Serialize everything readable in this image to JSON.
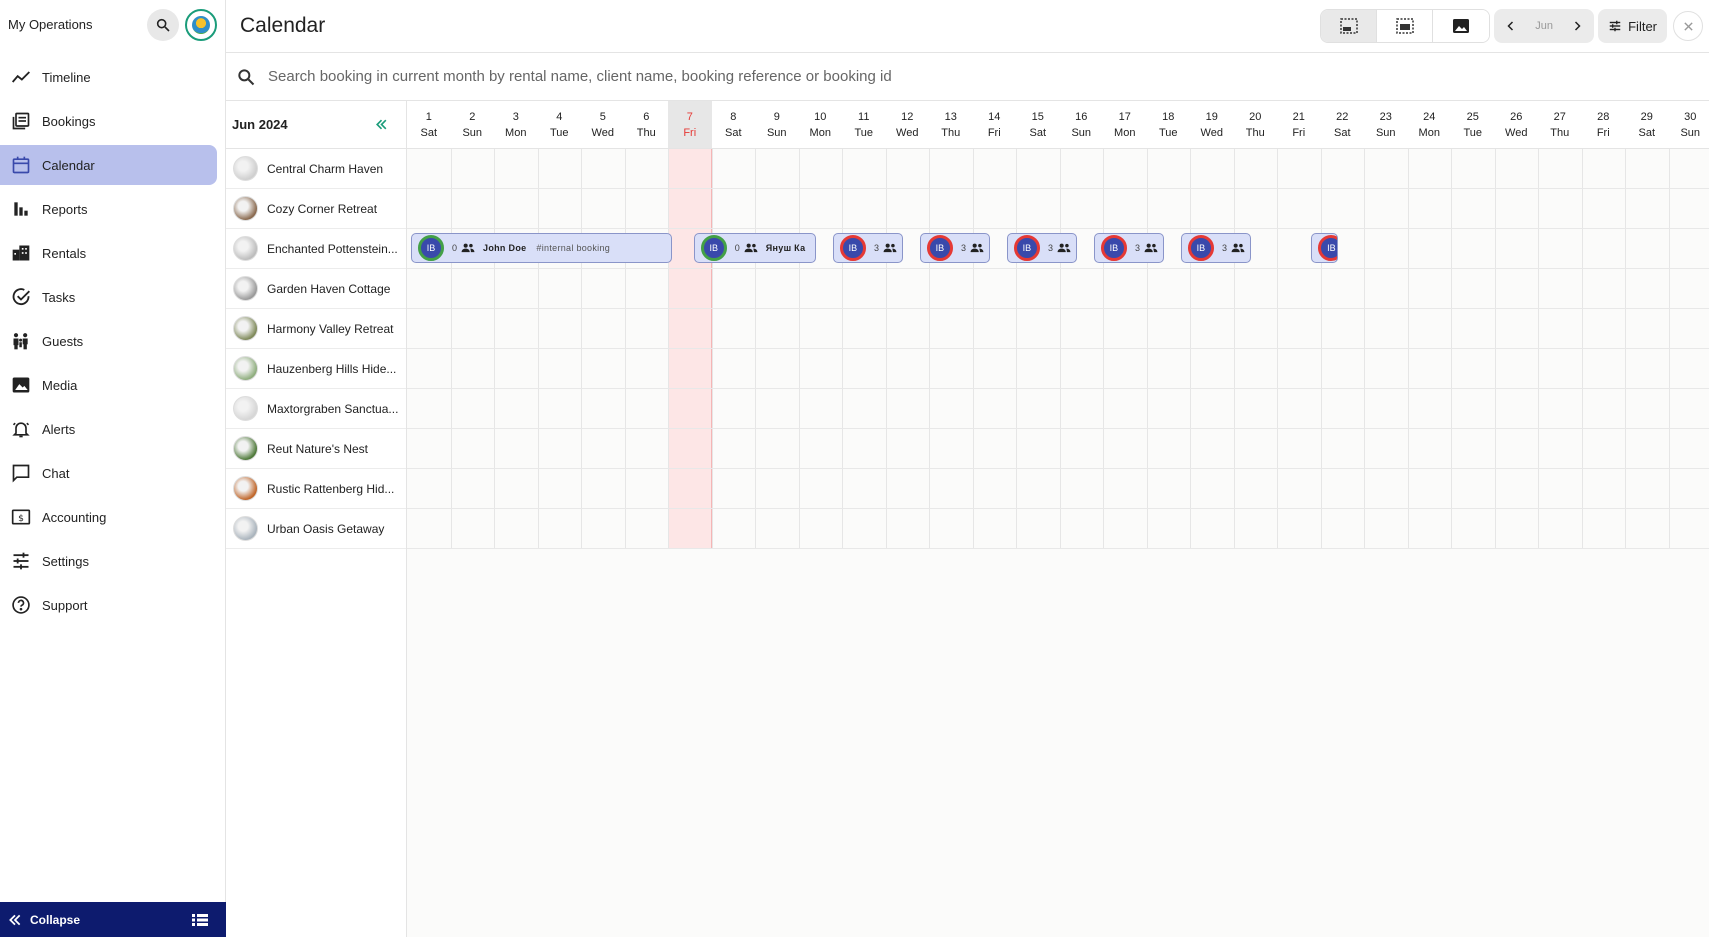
{
  "sidebar": {
    "title": "My Operations",
    "items": [
      {
        "label": "Timeline",
        "icon": "timeline-icon"
      },
      {
        "label": "Bookings",
        "icon": "bookings-icon"
      },
      {
        "label": "Calendar",
        "icon": "calendar-icon",
        "active": true
      },
      {
        "label": "Reports",
        "icon": "bar-chart-icon"
      },
      {
        "label": "Rentals",
        "icon": "building-icon"
      },
      {
        "label": "Tasks",
        "icon": "check-circle-icon"
      },
      {
        "label": "Guests",
        "icon": "people-icon"
      },
      {
        "label": "Media",
        "icon": "image-icon"
      },
      {
        "label": "Alerts",
        "icon": "bell-icon"
      },
      {
        "label": "Chat",
        "icon": "chat-icon"
      },
      {
        "label": "Accounting",
        "icon": "dollar-icon"
      },
      {
        "label": "Settings",
        "icon": "sliders-icon"
      },
      {
        "label": "Support",
        "icon": "help-icon"
      }
    ],
    "collapse_label": "Collapse"
  },
  "header": {
    "title": "Calendar",
    "month_label": "Jun",
    "filter_label": "Filter"
  },
  "search": {
    "placeholder": "Search booking in current month by rental name, client name, booking reference or booking id"
  },
  "calendar": {
    "month_title": "Jun 2024",
    "today": 7,
    "days": [
      {
        "n": "1",
        "d": "Sat"
      },
      {
        "n": "2",
        "d": "Sun"
      },
      {
        "n": "3",
        "d": "Mon"
      },
      {
        "n": "4",
        "d": "Tue"
      },
      {
        "n": "5",
        "d": "Wed"
      },
      {
        "n": "6",
        "d": "Thu"
      },
      {
        "n": "7",
        "d": "Fri"
      },
      {
        "n": "8",
        "d": "Sat"
      },
      {
        "n": "9",
        "d": "Sun"
      },
      {
        "n": "10",
        "d": "Mon"
      },
      {
        "n": "11",
        "d": "Tue"
      },
      {
        "n": "12",
        "d": "Wed"
      },
      {
        "n": "13",
        "d": "Thu"
      },
      {
        "n": "14",
        "d": "Fri"
      },
      {
        "n": "15",
        "d": "Sat"
      },
      {
        "n": "16",
        "d": "Sun"
      },
      {
        "n": "17",
        "d": "Mon"
      },
      {
        "n": "18",
        "d": "Tue"
      },
      {
        "n": "19",
        "d": "Wed"
      },
      {
        "n": "20",
        "d": "Thu"
      },
      {
        "n": "21",
        "d": "Fri"
      },
      {
        "n": "22",
        "d": "Sat"
      },
      {
        "n": "23",
        "d": "Sun"
      },
      {
        "n": "24",
        "d": "Mon"
      },
      {
        "n": "25",
        "d": "Tue"
      },
      {
        "n": "26",
        "d": "Wed"
      },
      {
        "n": "27",
        "d": "Thu"
      },
      {
        "n": "28",
        "d": "Fri"
      },
      {
        "n": "29",
        "d": "Sat"
      },
      {
        "n": "30",
        "d": "Sun"
      }
    ],
    "rentals": [
      {
        "name": "Central Charm Haven",
        "color": "#cfcfcf"
      },
      {
        "name": "Cozy Corner Retreat",
        "color": "#8a6a4f"
      },
      {
        "name": "Enchanted Pottenstein...",
        "color": "#bdbdbd"
      },
      {
        "name": "Garden Haven Cottage",
        "color": "#9a9a9a"
      },
      {
        "name": "Harmony Valley Retreat",
        "color": "#7f8a5a"
      },
      {
        "name": "Hauzenberg Hills Hide...",
        "color": "#8fae7e"
      },
      {
        "name": "Maxtorgraben Sanctua...",
        "color": "#d6d6d6"
      },
      {
        "name": "Reut Nature's Nest",
        "color": "#4f7a3a"
      },
      {
        "name": "Rustic Rattenberg Hid...",
        "color": "#c0662a"
      },
      {
        "name": "Urban Oasis Getaway",
        "color": "#aab4bd"
      }
    ],
    "bookings": [
      {
        "row": 2,
        "start": 1,
        "end": 7,
        "badge": "IB",
        "ring": "green",
        "count": "0",
        "name": "John Doe",
        "note": "#internal booking"
      },
      {
        "row": 2,
        "start": 7.5,
        "end": 10.3,
        "badge": "IB",
        "ring": "green",
        "count": "0",
        "name": "Януш Ка",
        "note": ""
      },
      {
        "row": 2,
        "start": 10.7,
        "end": 12.3,
        "badge": "IB",
        "ring": "red",
        "count": "3",
        "name": "",
        "note": ""
      },
      {
        "row": 2,
        "start": 12.7,
        "end": 14.3,
        "badge": "IB",
        "ring": "red",
        "count": "3",
        "name": "",
        "note": ""
      },
      {
        "row": 2,
        "start": 14.7,
        "end": 16.3,
        "badge": "IB",
        "ring": "red",
        "count": "3",
        "name": "",
        "note": ""
      },
      {
        "row": 2,
        "start": 16.7,
        "end": 18.3,
        "badge": "IB",
        "ring": "red",
        "count": "3",
        "name": "",
        "note": ""
      },
      {
        "row": 2,
        "start": 18.7,
        "end": 20.3,
        "badge": "IB",
        "ring": "red",
        "count": "3",
        "name": "",
        "note": ""
      },
      {
        "row": 2,
        "start": 21.7,
        "end": 22.3,
        "badge": "IB",
        "ring": "red",
        "count": "",
        "name": "",
        "note": ""
      }
    ]
  },
  "colors": {
    "accent": "#3949ab",
    "active_nav": "#b8c0ec",
    "collapse_bar": "#0d1b6e",
    "today_col": "#fde6e6"
  }
}
